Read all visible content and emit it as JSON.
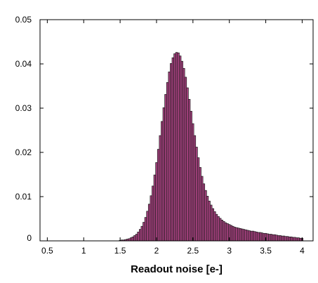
{
  "chart_data": {
    "type": "bar",
    "title": "",
    "xlabel": "Readout noise [e-]",
    "ylabel": "",
    "xlim": [
      0.4,
      4.15
    ],
    "ylim": [
      0,
      0.05
    ],
    "xticks": [
      "0.5",
      "1",
      "1.5",
      "2",
      "2.5",
      "3",
      "3.5",
      "4"
    ],
    "yticks": [
      "0",
      "0.01",
      "0.02",
      "0.03",
      "0.04",
      "0.05"
    ],
    "grid": false,
    "legend": "none",
    "bar_color": "#a5407e",
    "bin_width": 0.025,
    "series": [
      {
        "x": [
          1.5,
          1.525,
          1.55,
          1.575,
          1.6,
          1.625,
          1.65,
          1.675,
          1.7,
          1.725,
          1.75,
          1.775,
          1.8,
          1.825,
          1.85,
          1.875,
          1.9,
          1.925,
          1.95,
          1.975,
          2.0,
          2.025,
          2.05,
          2.075,
          2.1,
          2.125,
          2.15,
          2.175,
          2.2,
          2.225,
          2.25,
          2.275,
          2.3,
          2.325,
          2.35,
          2.375,
          2.4,
          2.425,
          2.45,
          2.475,
          2.5,
          2.525,
          2.55,
          2.575,
          2.6,
          2.625,
          2.65,
          2.675,
          2.7,
          2.725,
          2.75,
          2.775,
          2.8,
          2.825,
          2.85,
          2.875,
          2.9,
          2.925,
          2.95,
          2.975,
          3.0,
          3.025,
          3.05,
          3.075,
          3.1,
          3.125,
          3.15,
          3.175,
          3.2,
          3.225,
          3.25,
          3.275,
          3.3,
          3.325,
          3.35,
          3.375,
          3.4,
          3.425,
          3.45,
          3.475,
          3.5,
          3.525,
          3.55,
          3.575,
          3.6,
          3.625,
          3.65,
          3.675,
          3.7,
          3.725,
          3.75,
          3.775,
          3.8,
          3.825,
          3.85,
          3.875,
          3.9,
          3.925,
          3.95,
          3.975,
          4.0
        ],
        "values": [
          0.0001,
          0.0002,
          0.0002,
          0.0003,
          0.0004,
          0.0005,
          0.0007,
          0.0009,
          0.0012,
          0.0015,
          0.002,
          0.0026,
          0.0033,
          0.0042,
          0.0053,
          0.0067,
          0.0083,
          0.0102,
          0.0124,
          0.0149,
          0.0177,
          0.0207,
          0.0238,
          0.027,
          0.0301,
          0.0331,
          0.0358,
          0.0382,
          0.0401,
          0.0414,
          0.0423,
          0.0426,
          0.0425,
          0.0418,
          0.0406,
          0.039,
          0.037,
          0.0346,
          0.032,
          0.0293,
          0.0265,
          0.0238,
          0.0212,
          0.0188,
          0.0166,
          0.0146,
          0.0129,
          0.0114,
          0.0101,
          0.009,
          0.0081,
          0.0073,
          0.0066,
          0.006,
          0.0055,
          0.0051,
          0.0047,
          0.0044,
          0.0041,
          0.0039,
          0.0037,
          0.0035,
          0.0033,
          0.0031,
          0.003,
          0.0029,
          0.0028,
          0.0027,
          0.0026,
          0.0025,
          0.0024,
          0.0023,
          0.0022,
          0.0022,
          0.0021,
          0.002,
          0.0019,
          0.0019,
          0.0018,
          0.0017,
          0.0017,
          0.0016,
          0.0015,
          0.0015,
          0.0014,
          0.0014,
          0.0013,
          0.0012,
          0.0012,
          0.0011,
          0.0011,
          0.001,
          0.001,
          0.0009,
          0.0009,
          0.0008,
          0.0008,
          0.0007,
          0.0007,
          0.0006,
          0.0006
        ]
      }
    ]
  }
}
